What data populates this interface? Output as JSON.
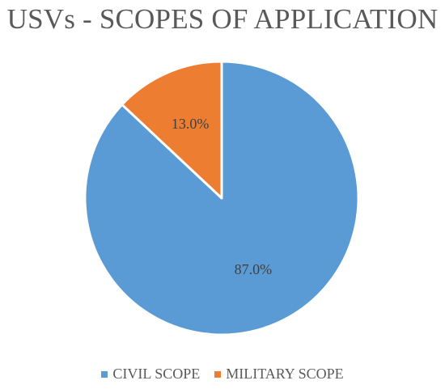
{
  "chart_data": {
    "type": "pie",
    "title": "USVs - SCOPES OF APPLICATION",
    "categories": [
      "CIVIL SCOPE",
      "MILITARY SCOPE"
    ],
    "values": [
      87.0,
      13.0
    ],
    "data_labels": [
      "87.0%",
      "13.0%"
    ],
    "colors": [
      "#5B9BD5",
      "#ED7D31"
    ],
    "legend_position": "bottom",
    "start": "12 o'clock",
    "direction": "clockwise"
  }
}
